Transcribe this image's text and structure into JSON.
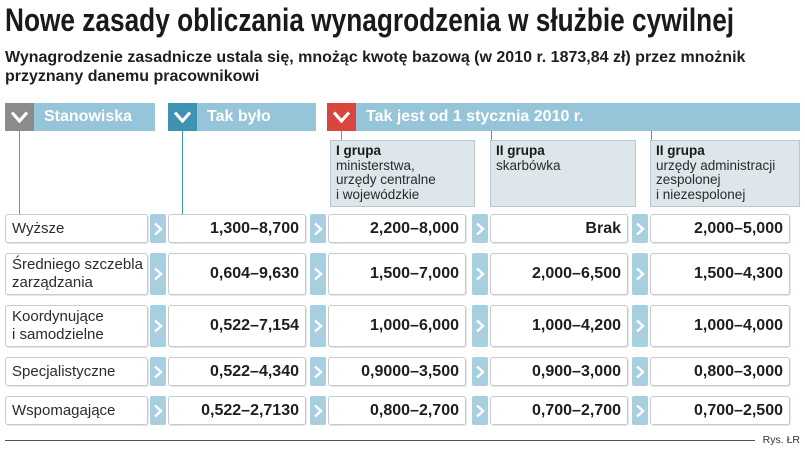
{
  "chart_data": {
    "type": "table",
    "title": "Nowe zasady obliczania wynagrodzenia w służbie cywilnej",
    "subtitle": "Wynagrodzenie zasadnicze ustala się, mnożąc kwotę bazową (w 2010 r. 1873,84 zł) przez mnożnik\nprzyznany danemu pracownikowi",
    "headers": {
      "positions": "Stanowiska",
      "before": "Tak było",
      "after": "Tak jest od 1 stycznia 2010 r."
    },
    "groups": [
      {
        "name": "I grupa",
        "description": "ministerstwa,\nurzędy centralne\ni wojewódzkie"
      },
      {
        "name": "II grupa",
        "description": "skarbówka"
      },
      {
        "name": "II grupa",
        "description": "urzędy administracji\nzespolonej\ni niezespolonej"
      }
    ],
    "rows": [
      {
        "label": "Wyższe",
        "values": [
          "1,300–8,700",
          "2,200–8,000",
          "Brak",
          "2,000–5,000"
        ]
      },
      {
        "label": "Średniego szczebla\nzarządzania",
        "values": [
          "0,604–9,630",
          "1,500–7,000",
          "2,000–6,500",
          "1,500–4,300"
        ]
      },
      {
        "label": "Koordynujące\ni samodzielne",
        "values": [
          "0,522–7,154",
          "1,000–6,000",
          "1,000–4,200",
          "1,000–4,000"
        ]
      },
      {
        "label": "Specjalistyczne",
        "values": [
          "0,522–4,340",
          "0,9000–3,500",
          "0,900–3,000",
          "0,800–3,000"
        ]
      },
      {
        "label": "Wspomagające",
        "values": [
          "0,522–2,7130",
          "0,800–2,700",
          "0,700–2,700",
          "0,700–2,500"
        ]
      }
    ]
  },
  "footer": {
    "credit": "Rys. ŁR"
  },
  "icons": {
    "header_marker": "chevron-down-icon",
    "row_arrow": "chevron-right-icon"
  },
  "colors": {
    "header_bar": "#96c4d8",
    "positions_marker": "#8b8b8b",
    "before_marker": "#3f93b2",
    "after_marker": "#d9463d",
    "group_box": "#dde6ea",
    "group_border": "#b9c8ce",
    "row_arrow": "#a8cfe0",
    "cell_border": "#c6cbcd"
  }
}
